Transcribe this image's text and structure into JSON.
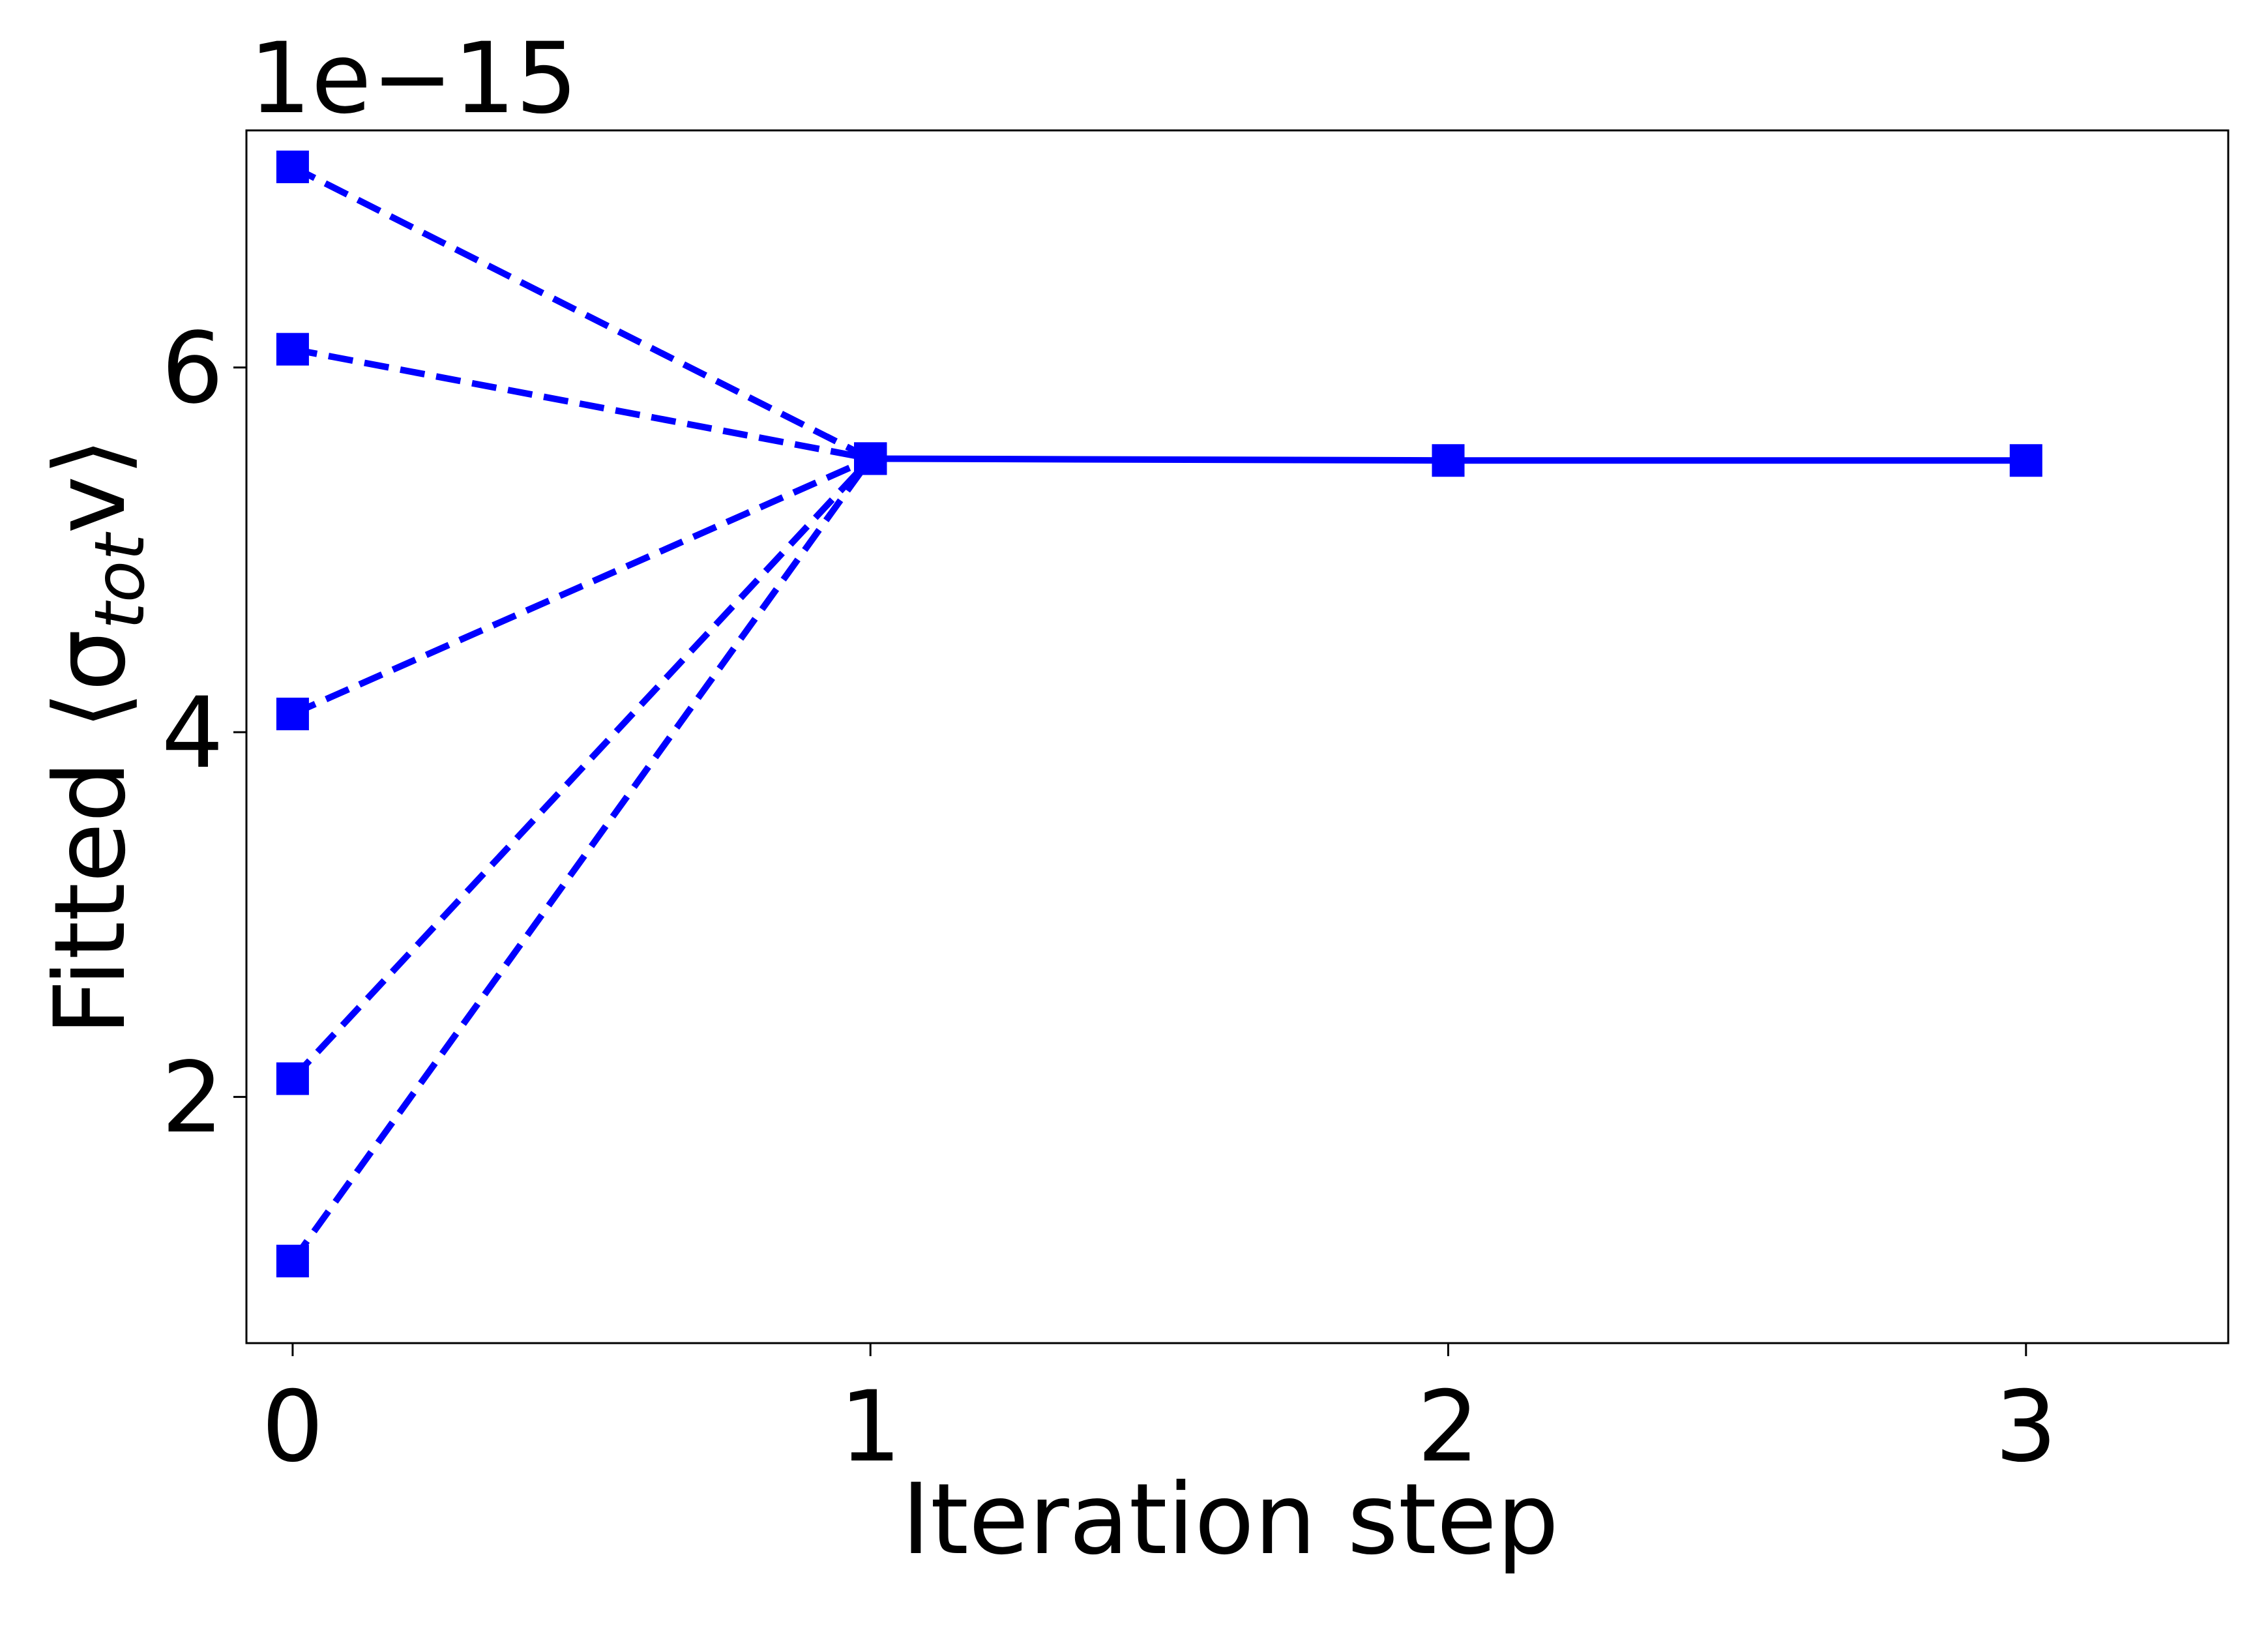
{
  "chart_data": {
    "type": "line",
    "xlabel": "Iteration step",
    "ylabel_main": "Fitted  ⟨σ",
    "ylabel_sub": "tot",
    "ylabel_tail": "v⟩",
    "offset_text": "1e−15",
    "x_ticks": [
      0,
      1,
      2,
      3
    ],
    "x_tick_labels": [
      "0",
      "1",
      "2",
      "3"
    ],
    "y_ticks": [
      2,
      4,
      6
    ],
    "y_tick_labels": [
      "2",
      "4",
      "6"
    ],
    "xlim": [
      -0.08,
      3.35
    ],
    "ylim": [
      0.65,
      7.3
    ],
    "y_scale_factor": "1e-15",
    "color": "#0000ff",
    "marker": "square",
    "initial_guesses": [
      {
        "x": [
          0,
          1
        ],
        "y": [
          7.1,
          5.5
        ]
      },
      {
        "x": [
          0,
          1
        ],
        "y": [
          6.1,
          5.5
        ]
      },
      {
        "x": [
          0,
          1
        ],
        "y": [
          4.1,
          5.5
        ]
      },
      {
        "x": [
          0,
          1
        ],
        "y": [
          2.1,
          5.5
        ]
      },
      {
        "x": [
          0,
          1
        ],
        "y": [
          1.1,
          5.5
        ]
      }
    ],
    "converged": {
      "x": [
        1,
        2,
        3
      ],
      "y": [
        5.5,
        5.49,
        5.49
      ]
    }
  }
}
